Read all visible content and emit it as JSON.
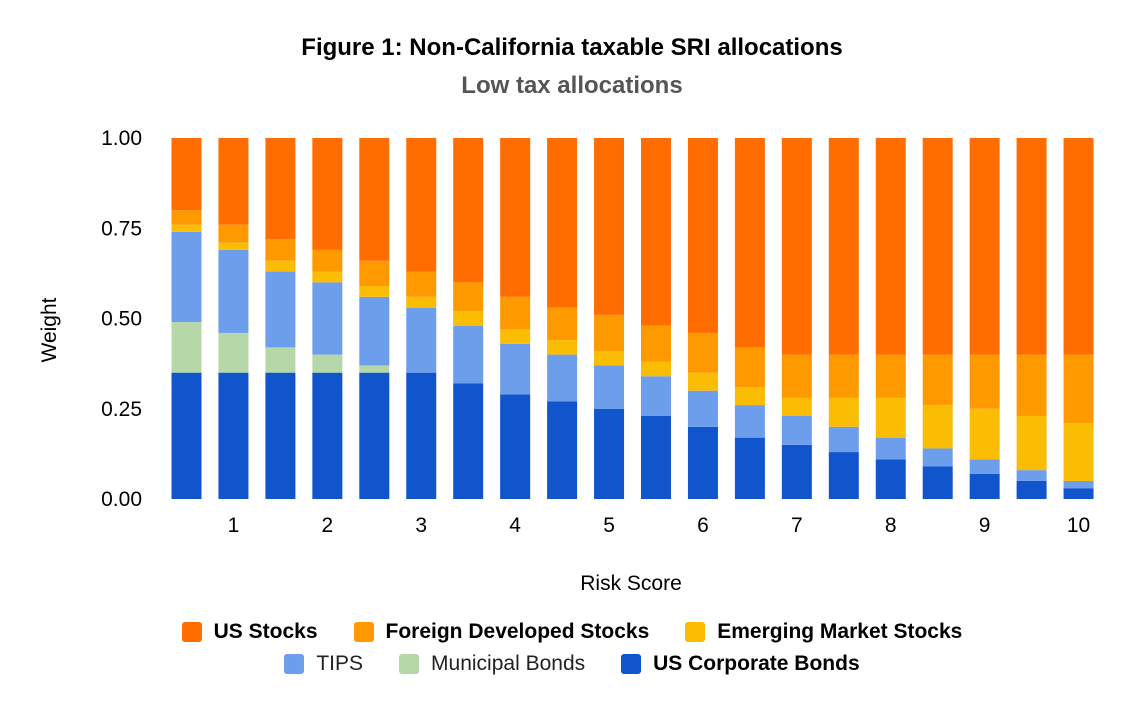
{
  "chart_data": {
    "type": "bar",
    "stacked": true,
    "title": "Figure 1: Non-California taxable SRI allocations",
    "subtitle": "Low tax allocations",
    "xlabel": "Risk Score",
    "ylabel": "Weight",
    "ylim": [
      0,
      1
    ],
    "yticks": [
      "0.00",
      "0.25",
      "0.50",
      "0.75",
      "1.00"
    ],
    "xtick_labels": [
      "1",
      "2",
      "3",
      "4",
      "5",
      "6",
      "7",
      "8",
      "9",
      "10"
    ],
    "categories": [
      0.5,
      1,
      1.5,
      2,
      2.5,
      3,
      3.5,
      4,
      4.5,
      5,
      5.5,
      6,
      6.5,
      7,
      7.5,
      8,
      8.5,
      9,
      9.5,
      10
    ],
    "series": [
      {
        "name": "US Corporate Bonds",
        "color": "#1155cc",
        "values": [
          0.35,
          0.35,
          0.35,
          0.35,
          0.35,
          0.35,
          0.32,
          0.29,
          0.27,
          0.25,
          0.23,
          0.2,
          0.17,
          0.15,
          0.13,
          0.11,
          0.09,
          0.07,
          0.05,
          0.03
        ]
      },
      {
        "name": "Municipal Bonds",
        "color": "#b6d7a8",
        "values": [
          0.14,
          0.11,
          0.07,
          0.05,
          0.02,
          0.0,
          0.0,
          0.0,
          0.0,
          0.0,
          0.0,
          0.0,
          0.0,
          0.0,
          0.0,
          0.0,
          0.0,
          0.0,
          0.0,
          0.0
        ]
      },
      {
        "name": "TIPS",
        "color": "#6d9eeb",
        "values": [
          0.25,
          0.23,
          0.21,
          0.2,
          0.19,
          0.18,
          0.16,
          0.14,
          0.13,
          0.12,
          0.11,
          0.1,
          0.09,
          0.08,
          0.07,
          0.06,
          0.05,
          0.04,
          0.03,
          0.02
        ]
      },
      {
        "name": "Emerging Market Stocks",
        "color": "#fbbc04",
        "values": [
          0.02,
          0.02,
          0.03,
          0.03,
          0.03,
          0.03,
          0.04,
          0.04,
          0.04,
          0.04,
          0.04,
          0.05,
          0.05,
          0.05,
          0.08,
          0.11,
          0.12,
          0.14,
          0.15,
          0.16
        ]
      },
      {
        "name": "Foreign Developed Stocks",
        "color": "#ff9900",
        "values": [
          0.04,
          0.05,
          0.06,
          0.06,
          0.07,
          0.07,
          0.08,
          0.09,
          0.09,
          0.1,
          0.1,
          0.11,
          0.11,
          0.12,
          0.12,
          0.12,
          0.14,
          0.15,
          0.17,
          0.19
        ]
      },
      {
        "name": "US Stocks",
        "color": "#ff6d01",
        "values": [
          0.2,
          0.24,
          0.28,
          0.31,
          0.34,
          0.37,
          0.4,
          0.44,
          0.47,
          0.49,
          0.52,
          0.54,
          0.58,
          0.6,
          0.6,
          0.6,
          0.6,
          0.6,
          0.6,
          0.6
        ]
      }
    ],
    "legend": {
      "position": "bottom",
      "rows": [
        [
          {
            "label": "US Stocks",
            "color": "#ff6d01",
            "bold": true
          },
          {
            "label": "Foreign Developed Stocks",
            "color": "#ff9900",
            "bold": true
          },
          {
            "label": "Emerging Market Stocks",
            "color": "#fbbc04",
            "bold": true
          }
        ],
        [
          {
            "label": "TIPS",
            "color": "#6d9eeb",
            "bold": false
          },
          {
            "label": "Municipal Bonds",
            "color": "#b6d7a8",
            "bold": false
          },
          {
            "label": "US Corporate Bonds",
            "color": "#1155cc",
            "bold": true
          }
        ]
      ]
    },
    "grid": false
  }
}
